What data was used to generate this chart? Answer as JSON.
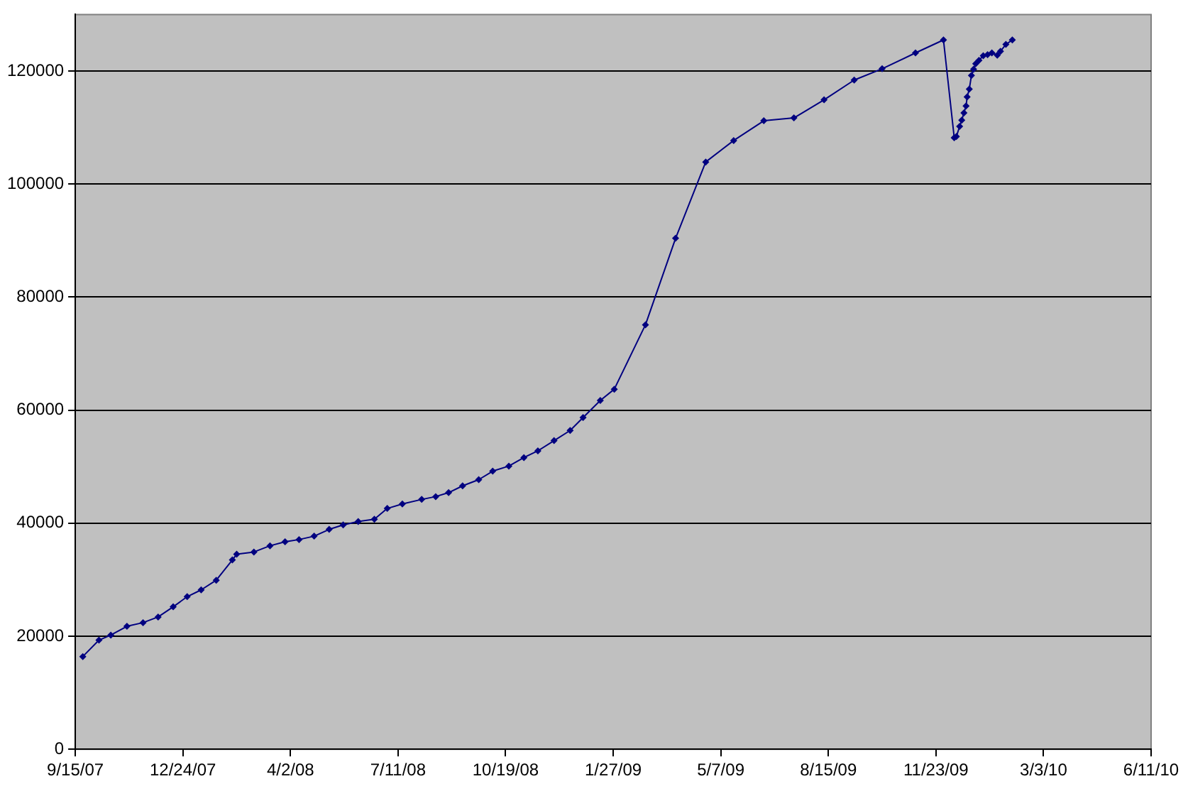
{
  "chart_data": {
    "type": "line",
    "x": [
      "2007-09-22",
      "2007-10-07",
      "2007-10-18",
      "2007-11-02",
      "2007-11-17",
      "2007-12-01",
      "2007-12-15",
      "2007-12-28",
      "2008-01-10",
      "2008-01-24",
      "2008-02-08",
      "2008-02-12",
      "2008-02-28",
      "2008-03-14",
      "2008-03-28",
      "2008-04-10",
      "2008-04-24",
      "2008-05-08",
      "2008-05-21",
      "2008-06-04",
      "2008-06-19",
      "2008-07-01",
      "2008-07-15",
      "2008-08-02",
      "2008-08-15",
      "2008-08-27",
      "2008-09-09",
      "2008-09-24",
      "2008-10-07",
      "2008-10-22",
      "2008-11-05",
      "2008-11-18",
      "2008-12-03",
      "2008-12-18",
      "2008-12-30",
      "2009-01-15",
      "2009-01-28",
      "2009-02-26",
      "2009-03-26",
      "2009-04-23",
      "2009-05-19",
      "2009-06-16",
      "2009-07-14",
      "2009-08-11",
      "2009-09-08",
      "2009-10-04",
      "2009-11-04",
      "2009-11-30",
      "2009-12-10",
      "2009-12-12",
      "2009-12-15",
      "2009-12-17",
      "2009-12-19",
      "2009-12-21",
      "2009-12-22",
      "2009-12-24",
      "2009-12-26",
      "2009-12-28",
      "2009-12-30",
      "2010-01-02",
      "2010-01-06",
      "2010-01-10",
      "2010-01-14",
      "2010-01-19",
      "2010-01-22",
      "2010-01-27",
      "2010-02-02"
    ],
    "series": [
      {
        "color": "#000080",
        "values": [
          16400,
          19300,
          20200,
          21750,
          22400,
          23400,
          25200,
          27000,
          28200,
          29900,
          33500,
          34500,
          34900,
          36000,
          36700,
          37100,
          37700,
          38900,
          39700,
          40300,
          40700,
          42600,
          43400,
          44200,
          44700,
          45400,
          46600,
          47700,
          49200,
          50100,
          51600,
          52800,
          54600,
          56400,
          58700,
          61700,
          63700,
          75100,
          90400,
          103900,
          107700,
          111200,
          111700,
          114900,
          118400,
          120400,
          123200,
          125500,
          108200,
          108400,
          110200,
          111300,
          112600,
          113800,
          115400,
          116800,
          119200,
          120300,
          121300,
          121900,
          122700,
          122900,
          123200,
          122800,
          123500,
          124700,
          125500
        ]
      }
    ],
    "xlim": [
      "2007-09-15",
      "2010-06-11"
    ],
    "xticks": [
      {
        "value": "2007-09-15",
        "label": "9/15/07"
      },
      {
        "value": "2007-12-24",
        "label": "12/24/07"
      },
      {
        "value": "2008-04-02",
        "label": "4/2/08"
      },
      {
        "value": "2008-07-11",
        "label": "7/11/08"
      },
      {
        "value": "2008-10-19",
        "label": "10/19/08"
      },
      {
        "value": "2009-01-27",
        "label": "1/27/09"
      },
      {
        "value": "2009-05-07",
        "label": "5/7/09"
      },
      {
        "value": "2009-08-15",
        "label": "8/15/09"
      },
      {
        "value": "2009-11-23",
        "label": "11/23/09"
      },
      {
        "value": "2010-03-03",
        "label": "3/3/10"
      },
      {
        "value": "2010-06-11",
        "label": "6/11/10"
      }
    ],
    "ylim": [
      0,
      130000
    ],
    "yticks": [
      0,
      20000,
      40000,
      60000,
      80000,
      100000,
      120000
    ],
    "grid": "y",
    "legend": false,
    "marker": "diamond",
    "line_style": "solid"
  }
}
